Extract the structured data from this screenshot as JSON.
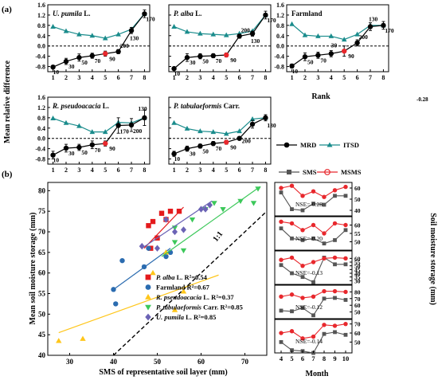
{
  "figure": {
    "panel_a_label": "(a)",
    "panel_b_label": "(b)",
    "y_label_a": "Mean relative difference",
    "x_label_a": "Rank",
    "stray_value": "-0.28",
    "x_label_b": "SMS of representative soil layer (mm)",
    "y_label_b": "Mean soil moisture storage (mm)",
    "y_label_inset": "Soil moisture storage (mm)",
    "x_label_inset": "Month",
    "line_label": "1:1"
  },
  "chart_data": [
    {
      "type": "line",
      "name": "a-panels",
      "x": [
        1,
        2,
        3,
        4,
        5,
        6,
        7,
        8
      ],
      "xlim": [
        0.6,
        8.4
      ],
      "ylim": [
        -1.0,
        1.6
      ],
      "yticks": [
        -0.8,
        -0.4,
        0.0,
        0.4,
        0.8,
        1.2,
        1.6
      ],
      "panels": [
        {
          "title": "U. pumila L.",
          "title_italic": "U. pumila",
          "title_rest": " L.",
          "mrd": [
            -0.82,
            -0.6,
            -0.45,
            -0.38,
            -0.3,
            -0.22,
            0.6,
            1.25
          ],
          "mrd_err": [
            0.06,
            0.12,
            0.14,
            0.1,
            0.1,
            0.08,
            0.12,
            0.15
          ],
          "itsd": [
            0.75,
            0.58,
            0.45,
            0.4,
            0.3,
            0.45,
            0.65,
            1.25
          ],
          "msms_index": 4,
          "labels": [
            "10",
            "30",
            "50",
            "70",
            "90",
            "200",
            "130",
            "170"
          ]
        },
        {
          "title": "P. alba L.",
          "title_italic": "P. alba",
          "title_rest": " L.",
          "mrd": [
            -0.88,
            -0.45,
            -0.4,
            -0.38,
            -0.35,
            0.38,
            0.48,
            1.2
          ],
          "mrd_err": [
            0.06,
            0.15,
            0.1,
            0.08,
            0.08,
            0.08,
            0.1,
            0.15
          ],
          "itsd": [
            0.75,
            0.55,
            0.48,
            0.45,
            0.42,
            0.48,
            0.58,
            1.2
          ],
          "msms_index": 4,
          "labels": [
            "10",
            "30",
            "50",
            "70",
            "90",
            "200",
            "130",
            "170"
          ]
        },
        {
          "title": "Farmland",
          "title_italic": "",
          "title_rest": "Farmland",
          "mrd": [
            -0.78,
            -0.42,
            -0.36,
            -0.3,
            -0.2,
            0.12,
            0.75,
            0.8
          ],
          "mrd_err": [
            0.08,
            0.15,
            0.12,
            0.12,
            0.2,
            0.12,
            0.15,
            0.15
          ],
          "itsd": [
            0.85,
            0.42,
            0.38,
            0.38,
            0.25,
            0.45,
            0.8,
            0.8
          ],
          "msms_index": 4,
          "labels": [
            "10",
            "50",
            "70",
            "30",
            "90",
            "200",
            "130",
            "170"
          ]
        },
        {
          "title": "R. pseudoacacia L.",
          "title_italic": "R. pseudoacacia",
          "title_rest": " L.",
          "mrd": [
            -0.65,
            -0.38,
            -0.35,
            -0.25,
            -0.2,
            0.5,
            0.52,
            0.8
          ],
          "mrd_err": [
            0.15,
            0.15,
            0.12,
            0.15,
            0.1,
            0.3,
            0.25,
            0.3
          ],
          "itsd": [
            0.78,
            0.6,
            0.48,
            0.25,
            0.25,
            0.62,
            0.6,
            0.8
          ],
          "msms_index": 4,
          "labels": [
            "10",
            "30",
            "50",
            "70",
            "90",
            "170",
            "200",
            "130"
          ]
        },
        {
          "title": "P. tabulaeformis Carr.",
          "title_italic": "P. tabulaeformis",
          "title_rest": " Carr.",
          "mrd": [
            -0.6,
            -0.4,
            -0.3,
            -0.2,
            -0.15,
            0.0,
            0.55,
            0.8
          ],
          "mrd_err": [
            0.1,
            0.1,
            0.08,
            0.08,
            0.08,
            0.06,
            0.15,
            0.12
          ],
          "itsd": [
            0.6,
            0.38,
            0.28,
            0.25,
            0.18,
            0.28,
            0.75,
            0.8
          ],
          "msms_index": 4,
          "labels": [
            "10",
            "30",
            "50",
            "70",
            "90",
            "200",
            "",
            "130"
          ]
        }
      ],
      "legend": {
        "mrd": "MRD",
        "itsd": "ITSD",
        "sms": "SMS",
        "msms": "MSMS"
      },
      "colors": {
        "mrd": "#000000",
        "itsd": "#1a8c8c",
        "sms": "#555555",
        "msms": "#e8282d"
      }
    },
    {
      "type": "scatter",
      "name": "b-scatter",
      "xlim": [
        25,
        75
      ],
      "ylim": [
        40,
        82
      ],
      "xticks": [
        30,
        40,
        50,
        60,
        70
      ],
      "yticks": [
        40,
        45,
        50,
        55,
        60,
        65,
        70,
        75,
        80
      ],
      "series": [
        {
          "name": "P. alba L. R²=0.54",
          "name_italic": "P. alba",
          "name_rest": " L. R²=0.54",
          "color": "#e41a1c",
          "marker": "square",
          "points": [
            [
              48,
              71.5
            ],
            [
              49,
              72.5
            ],
            [
              51,
              74.5
            ],
            [
              53,
              75
            ],
            [
              55,
              75
            ],
            [
              50,
              68.5
            ],
            [
              48.5,
              66
            ],
            [
              52,
              73
            ]
          ],
          "fit": [
            [
              47,
              66
            ],
            [
              56,
              76
            ]
          ]
        },
        {
          "name": "Farmland R²=0.67",
          "name_italic": "",
          "name_rest": "Farmland R²=0.67",
          "color": "#2b6cb0",
          "marker": "circle",
          "points": [
            [
              40,
              56
            ],
            [
              40.5,
              52.5
            ],
            [
              42,
              63
            ],
            [
              47,
              61.5
            ],
            [
              48,
              66
            ],
            [
              52,
              64
            ],
            [
              53,
              65
            ]
          ],
          "fit": [
            [
              40,
              56
            ],
            [
              53,
              66
            ]
          ]
        },
        {
          "name": "R. pseudoacacia L. R²=0.37",
          "name_italic": "R. pseudoacacia",
          "name_rest": " L. R²=0.37",
          "color": "#ffc61a",
          "marker": "triangle-up",
          "points": [
            [
              27.5,
              43.5
            ],
            [
              33,
              44
            ],
            [
              49,
              60
            ],
            [
              56,
              55.5
            ],
            [
              52,
              65
            ],
            [
              54,
              51
            ]
          ],
          "fit": [
            [
              27.5,
              45.5
            ],
            [
              64,
              59.5
            ]
          ]
        },
        {
          "name": "P. tabulaeformis Carr. R²=0.85",
          "name_italic": "P. tabulaeformis",
          "name_rest": " Carr. R²=0.85",
          "color": "#3cc85a",
          "marker": "triangle-down",
          "points": [
            [
              54,
              71
            ],
            [
              58,
              73
            ],
            [
              63,
              77
            ],
            [
              65,
              75.5
            ],
            [
              69,
              77.5
            ],
            [
              72,
              77
            ],
            [
              73,
              80.5
            ],
            [
              61,
              75.5
            ],
            [
              54,
              67.5
            ],
            [
              56,
              65.5
            ]
          ],
          "fit": [
            [
              51,
              64
            ],
            [
              73.5,
              81
            ]
          ]
        },
        {
          "name": "U. pumila L. R²=0.85",
          "name_italic": "U. pumila",
          "name_rest": " L. R²=0.85",
          "color": "#6b63b5",
          "marker": "diamond",
          "points": [
            [
              46.5,
              66.5
            ],
            [
              50,
              66
            ],
            [
              52,
              73
            ],
            [
              54,
              70
            ],
            [
              56,
              70.5
            ],
            [
              60,
              75.5
            ],
            [
              62,
              76.5
            ],
            [
              61,
              75.5
            ]
          ],
          "fit": [
            [
              46.5,
              66
            ],
            [
              62.5,
              77.5
            ]
          ]
        }
      ]
    },
    {
      "type": "line",
      "name": "b-insets",
      "x": [
        4,
        5,
        6,
        7,
        8,
        9,
        10
      ],
      "xticks": [
        4,
        5,
        6,
        7,
        8,
        9,
        10
      ],
      "insets": [
        {
          "nse": "NSE=-0.28",
          "ylim": [
            35,
            65
          ],
          "yticks": [
            40,
            50,
            60
          ],
          "sms": [
            56,
            41,
            40,
            46,
            45,
            53,
            53
          ],
          "msms": [
            60,
            62,
            53,
            57,
            52,
            58,
            61
          ]
        },
        {
          "nse": "NSE=-0.20",
          "ylim": [
            45,
            65
          ],
          "yticks": [
            50,
            55,
            60
          ],
          "sms": [
            58,
            52,
            51,
            52,
            49,
            51,
            57
          ],
          "msms": [
            62,
            61,
            57,
            60,
            55,
            61,
            60
          ]
        },
        {
          "nse": "NSE=-0.13",
          "ylim": [
            25,
            70
          ],
          "yticks": [
            30,
            35,
            40,
            45,
            50,
            55,
            60
          ],
          "sms": [
            51,
            40,
            35,
            28,
            61,
            52,
            52
          ],
          "msms": [
            58,
            61,
            50,
            55,
            60,
            61,
            60
          ]
        },
        {
          "nse": "NSE=-0.12",
          "ylim": [
            40,
            90
          ],
          "yticks": [
            50,
            60,
            70,
            80
          ],
          "sms": [
            52,
            51,
            56,
            45,
            70,
            71,
            68
          ],
          "msms": [
            73,
            76,
            71,
            73,
            81,
            81,
            80
          ]
        },
        {
          "nse": "NSE=-0.14",
          "ylim": [
            38,
            75
          ],
          "yticks": [
            50,
            60,
            70
          ],
          "sms": [
            50,
            41,
            40,
            38,
            59,
            61,
            58
          ],
          "msms": [
            60,
            62,
            54,
            56,
            69,
            68,
            70
          ]
        }
      ]
    }
  ]
}
